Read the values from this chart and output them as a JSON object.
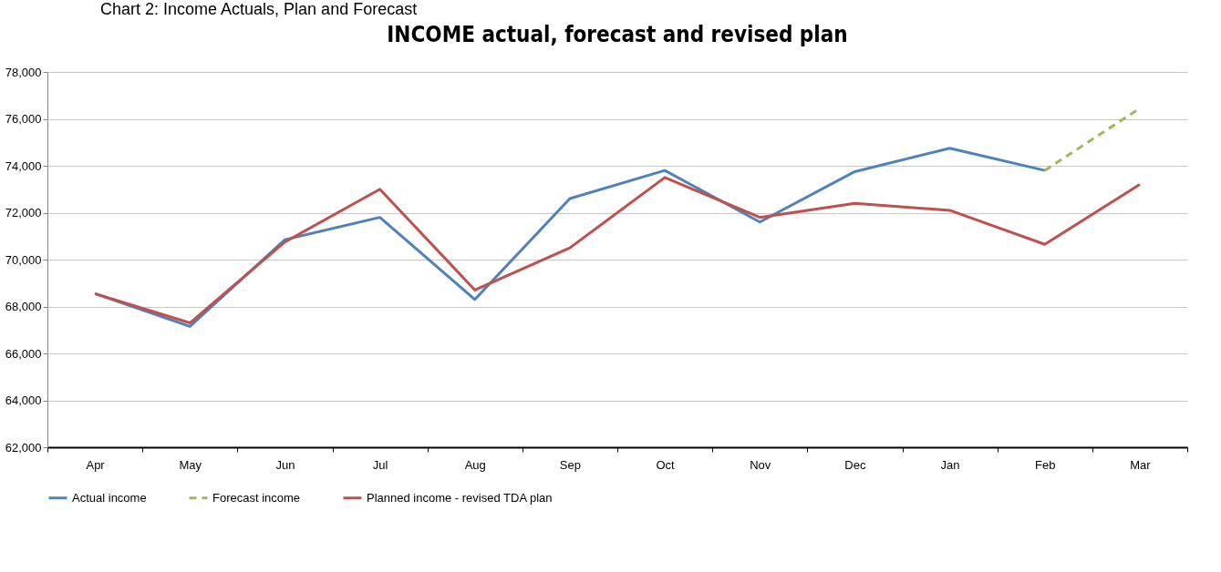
{
  "chart_data": {
    "type": "line",
    "title": "INCOME actual, forecast and revised plan",
    "annotations": [
      "Chart 2: Income Actuals, Plan and Forecast"
    ],
    "categories": [
      "Apr",
      "May",
      "Jun",
      "Jul",
      "Aug",
      "Sep",
      "Oct",
      "Nov",
      "Dec",
      "Jan",
      "Feb",
      "Mar"
    ],
    "series": [
      {
        "name": "Actual income",
        "color": "#4f81bd",
        "values": [
          68550,
          67150,
          70850,
          71800,
          68300,
          72600,
          73800,
          71600,
          73750,
          74750,
          73800,
          null
        ]
      },
      {
        "name": "Forecast income",
        "color": "#9bbb59",
        "line_style": "dashed",
        "values": [
          null,
          null,
          null,
          null,
          null,
          null,
          null,
          null,
          null,
          null,
          73800,
          76450
        ]
      },
      {
        "name": "Planned income - revised TDA plan",
        "color": "#c0504d",
        "values": [
          68550,
          67300,
          70750,
          73000,
          68700,
          70500,
          73500,
          71800,
          72400,
          72100,
          70650,
          73200
        ]
      }
    ],
    "ylim": [
      62000,
      78000
    ],
    "yticks": [
      {
        "value": 62000,
        "label": "62,000"
      },
      {
        "value": 64000,
        "label": "64,000"
      },
      {
        "value": 66000,
        "label": "66,000"
      },
      {
        "value": 68000,
        "label": "68,000"
      },
      {
        "value": 70000,
        "label": "70,000"
      },
      {
        "value": 72000,
        "label": "72,000"
      },
      {
        "value": 74000,
        "label": "74,000"
      },
      {
        "value": 76000,
        "label": "76,000"
      },
      {
        "value": 78000,
        "label": "78,000"
      }
    ],
    "grid": "y",
    "legend": "bottom",
    "marker": "none",
    "line_style": "solid"
  }
}
